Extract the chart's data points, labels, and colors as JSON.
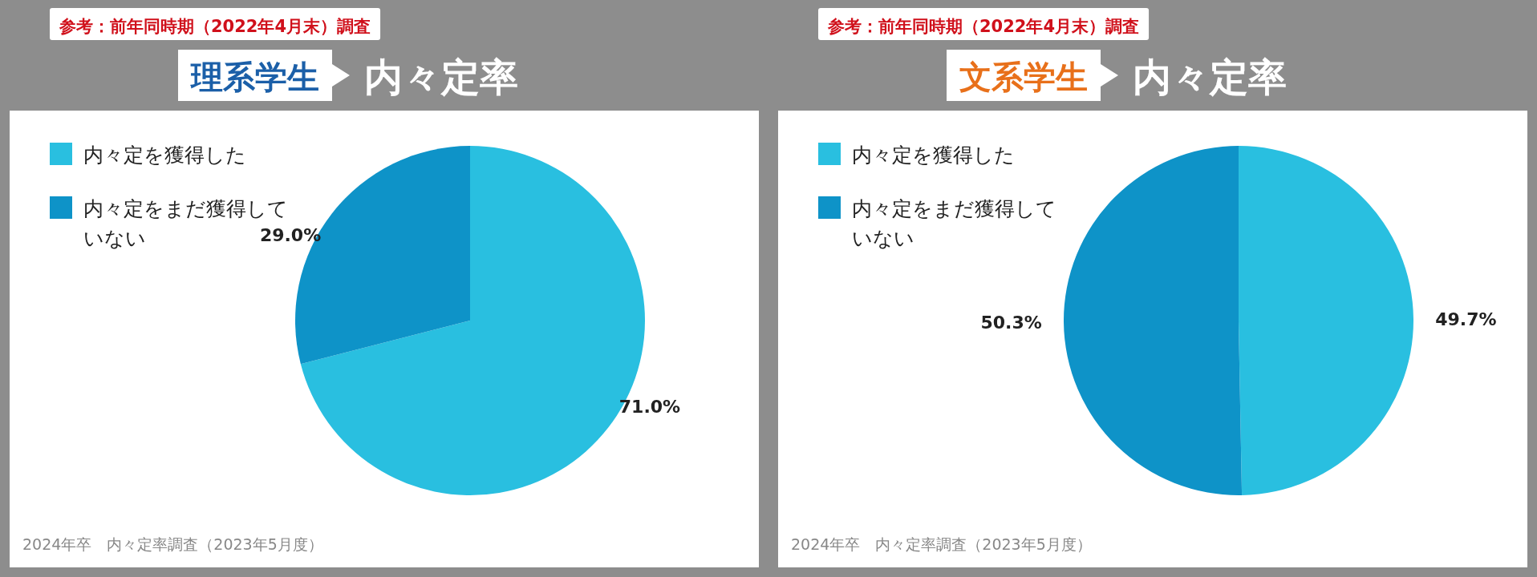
{
  "chart_data": [
    {
      "type": "pie",
      "title": "理系学生",
      "subtitle": "内々定率",
      "categories": [
        "内々定を獲得した",
        "内々定をまだ獲得していない"
      ],
      "values": [
        71.0,
        29.0
      ],
      "colors": [
        "#29bfe0",
        "#0e93c8"
      ],
      "value_labels": [
        "71.0%",
        "29.0%"
      ],
      "legend": "top left",
      "annotations": [
        "参考：前年同時期（2022年4月末）調査",
        "2024年卒　内々定率調査（2023年5月度）"
      ]
    },
    {
      "type": "pie",
      "title": "文系学生",
      "subtitle": "内々定率",
      "categories": [
        "内々定を獲得した",
        "内々定をまだ獲得していない"
      ],
      "values": [
        49.7,
        50.3
      ],
      "colors": [
        "#29bfe0",
        "#0e93c8"
      ],
      "value_labels": [
        "49.7%",
        "50.3%"
      ],
      "legend": "top left",
      "annotations": [
        "参考：前年同時期（2022年4月末）調査",
        "2024年卒　内々定率調査（2023年5月度）"
      ]
    }
  ]
}
